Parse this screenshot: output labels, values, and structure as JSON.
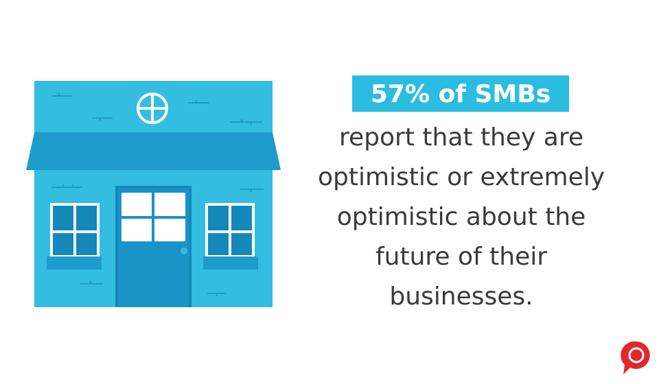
{
  "headline": "57% of SMBs",
  "body_lines": [
    "report that they are",
    "optimistic or extremely",
    "optimistic about the",
    "future of their",
    "businesses."
  ]
}
